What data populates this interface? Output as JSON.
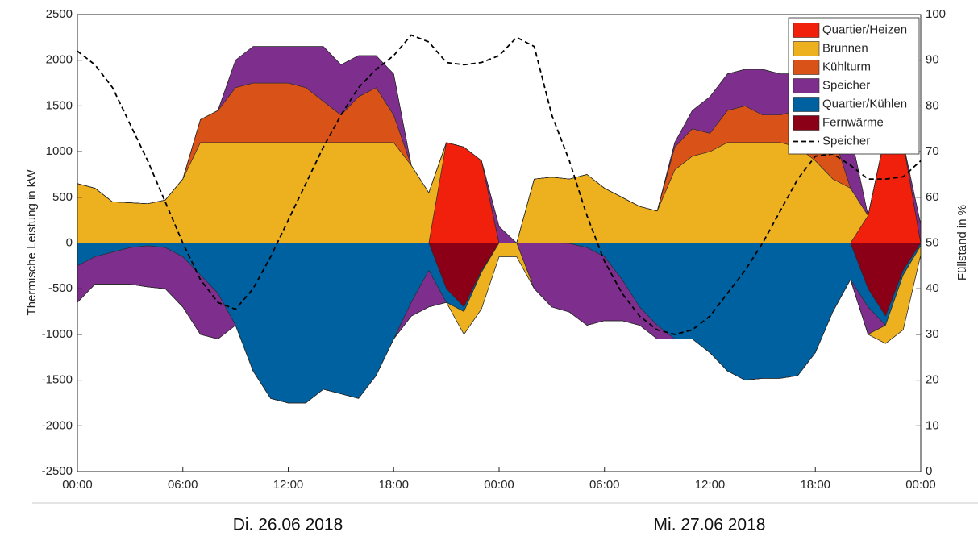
{
  "chart_data": {
    "type": "stacked_area",
    "y_label": "Thermische Leistung in kW",
    "y2_label": "Füllstand in %",
    "day_labels": [
      "Di. 26.06 2018",
      "Mi. 27.06 2018"
    ],
    "x": [
      0,
      1,
      2,
      3,
      4,
      5,
      6,
      7,
      8,
      9,
      10,
      11,
      12,
      13,
      14,
      15,
      16,
      17,
      18,
      19,
      20,
      21,
      22,
      23,
      24,
      25,
      26,
      27,
      28,
      29,
      30,
      31,
      32,
      33,
      34,
      35,
      36,
      37,
      38,
      39,
      40,
      41,
      42,
      43,
      44,
      45,
      46,
      47,
      48
    ],
    "xlim": [
      0,
      48
    ],
    "xticks": [
      {
        "value": 0,
        "label": "00:00"
      },
      {
        "value": 6,
        "label": "06:00"
      },
      {
        "value": 12,
        "label": "12:00"
      },
      {
        "value": 18,
        "label": "18:00"
      },
      {
        "value": 24,
        "label": "00:00"
      },
      {
        "value": 30,
        "label": "06:00"
      },
      {
        "value": 36,
        "label": "12:00"
      },
      {
        "value": 42,
        "label": "18:00"
      },
      {
        "value": 48,
        "label": "00:00"
      }
    ],
    "ylim": [
      -2500,
      2500
    ],
    "yticks": [
      -2500,
      -2000,
      -1500,
      -1000,
      -500,
      0,
      500,
      1000,
      1500,
      2000,
      2500
    ],
    "y2lim": [
      0,
      100
    ],
    "y2ticks": [
      0,
      10,
      20,
      30,
      40,
      50,
      60,
      70,
      80,
      90,
      100
    ],
    "legend": "upper right",
    "series": [
      {
        "name": "Quartier/Heizen",
        "color": "#f0200c",
        "values": [
          0,
          0,
          0,
          0,
          0,
          0,
          0,
          0,
          0,
          0,
          0,
          0,
          0,
          0,
          0,
          0,
          0,
          0,
          0,
          0,
          0,
          1100,
          1050,
          900,
          0,
          0,
          0,
          0,
          0,
          0,
          0,
          0,
          0,
          0,
          0,
          0,
          0,
          0,
          0,
          0,
          0,
          0,
          0,
          0,
          0,
          300,
          1200,
          1100,
          0
        ]
      },
      {
        "name": "Brunnen",
        "color": "#edb120",
        "values": [
          650,
          600,
          450,
          440,
          430,
          470,
          700,
          1100,
          1100,
          1100,
          1100,
          1100,
          1100,
          1100,
          1100,
          1100,
          1100,
          1100,
          1100,
          850,
          550,
          0,
          -250,
          -400,
          -150,
          -150,
          700,
          720,
          700,
          750,
          600,
          500,
          400,
          350,
          800,
          950,
          1000,
          1100,
          1100,
          1100,
          1100,
          1050,
          900,
          700,
          600,
          0,
          -200,
          -600,
          -100
        ]
      },
      {
        "name": "Kühlturm",
        "color": "#d95319",
        "values": [
          0,
          0,
          0,
          0,
          0,
          0,
          0,
          250,
          350,
          600,
          650,
          650,
          650,
          600,
          450,
          300,
          500,
          600,
          300,
          0,
          0,
          0,
          0,
          0,
          0,
          0,
          0,
          0,
          0,
          0,
          0,
          0,
          0,
          0,
          250,
          300,
          200,
          350,
          400,
          300,
          300,
          400,
          550,
          500,
          0,
          0,
          0,
          0,
          0
        ]
      },
      {
        "name": "Speicher",
        "color": "#7e2f8e",
        "values": [
          -400,
          -300,
          -350,
          -400,
          -450,
          -450,
          -550,
          -650,
          -500,
          300,
          400,
          400,
          400,
          450,
          600,
          550,
          450,
          350,
          450,
          -150,
          -400,
          0,
          0,
          0,
          180,
          0,
          -500,
          -700,
          -750,
          -850,
          -700,
          -450,
          -200,
          -150,
          50,
          200,
          400,
          400,
          400,
          500,
          450,
          400,
          300,
          500,
          600,
          -300,
          0,
          0,
          200
        ]
      },
      {
        "name": "Quartier/Kühlen",
        "color": "#0061a0",
        "values": [
          -250,
          -150,
          -100,
          -50,
          -30,
          -50,
          -150,
          -350,
          -550,
          -900,
          -1400,
          -1700,
          -1750,
          -1750,
          -1600,
          -1650,
          -1700,
          -1450,
          -1050,
          -650,
          -300,
          -150,
          -50,
          -20,
          0,
          0,
          0,
          0,
          -5,
          -50,
          -150,
          -400,
          -700,
          -900,
          -1050,
          -1050,
          -1200,
          -1400,
          -1500,
          -1480,
          -1480,
          -1450,
          -1200,
          -750,
          -400,
          -200,
          -100,
          -50,
          -30
        ]
      },
      {
        "name": "Fernwärme",
        "color": "#8b0016",
        "values": [
          0,
          0,
          0,
          0,
          0,
          0,
          0,
          0,
          0,
          0,
          0,
          0,
          0,
          0,
          0,
          0,
          0,
          0,
          0,
          0,
          0,
          -500,
          -700,
          -300,
          0,
          0,
          0,
          0,
          0,
          0,
          0,
          0,
          0,
          0,
          0,
          0,
          0,
          0,
          0,
          0,
          0,
          0,
          0,
          0,
          0,
          -500,
          -800,
          -300,
          0
        ]
      },
      {
        "name": "Speicher",
        "color": "#000000",
        "axis": "y2",
        "dash": true,
        "values": [
          92,
          89,
          84,
          76,
          68,
          59,
          50,
          42,
          37,
          35.5,
          40,
          47,
          55,
          63,
          71,
          78,
          84,
          88,
          91,
          95.5,
          94,
          89.5,
          89,
          89.5,
          91,
          95,
          93,
          78,
          68,
          56,
          46,
          39,
          34,
          31,
          30,
          31,
          34,
          39,
          44,
          50,
          57,
          64,
          69,
          69.5,
          67,
          64,
          64,
          64.5,
          68
        ]
      }
    ]
  }
}
